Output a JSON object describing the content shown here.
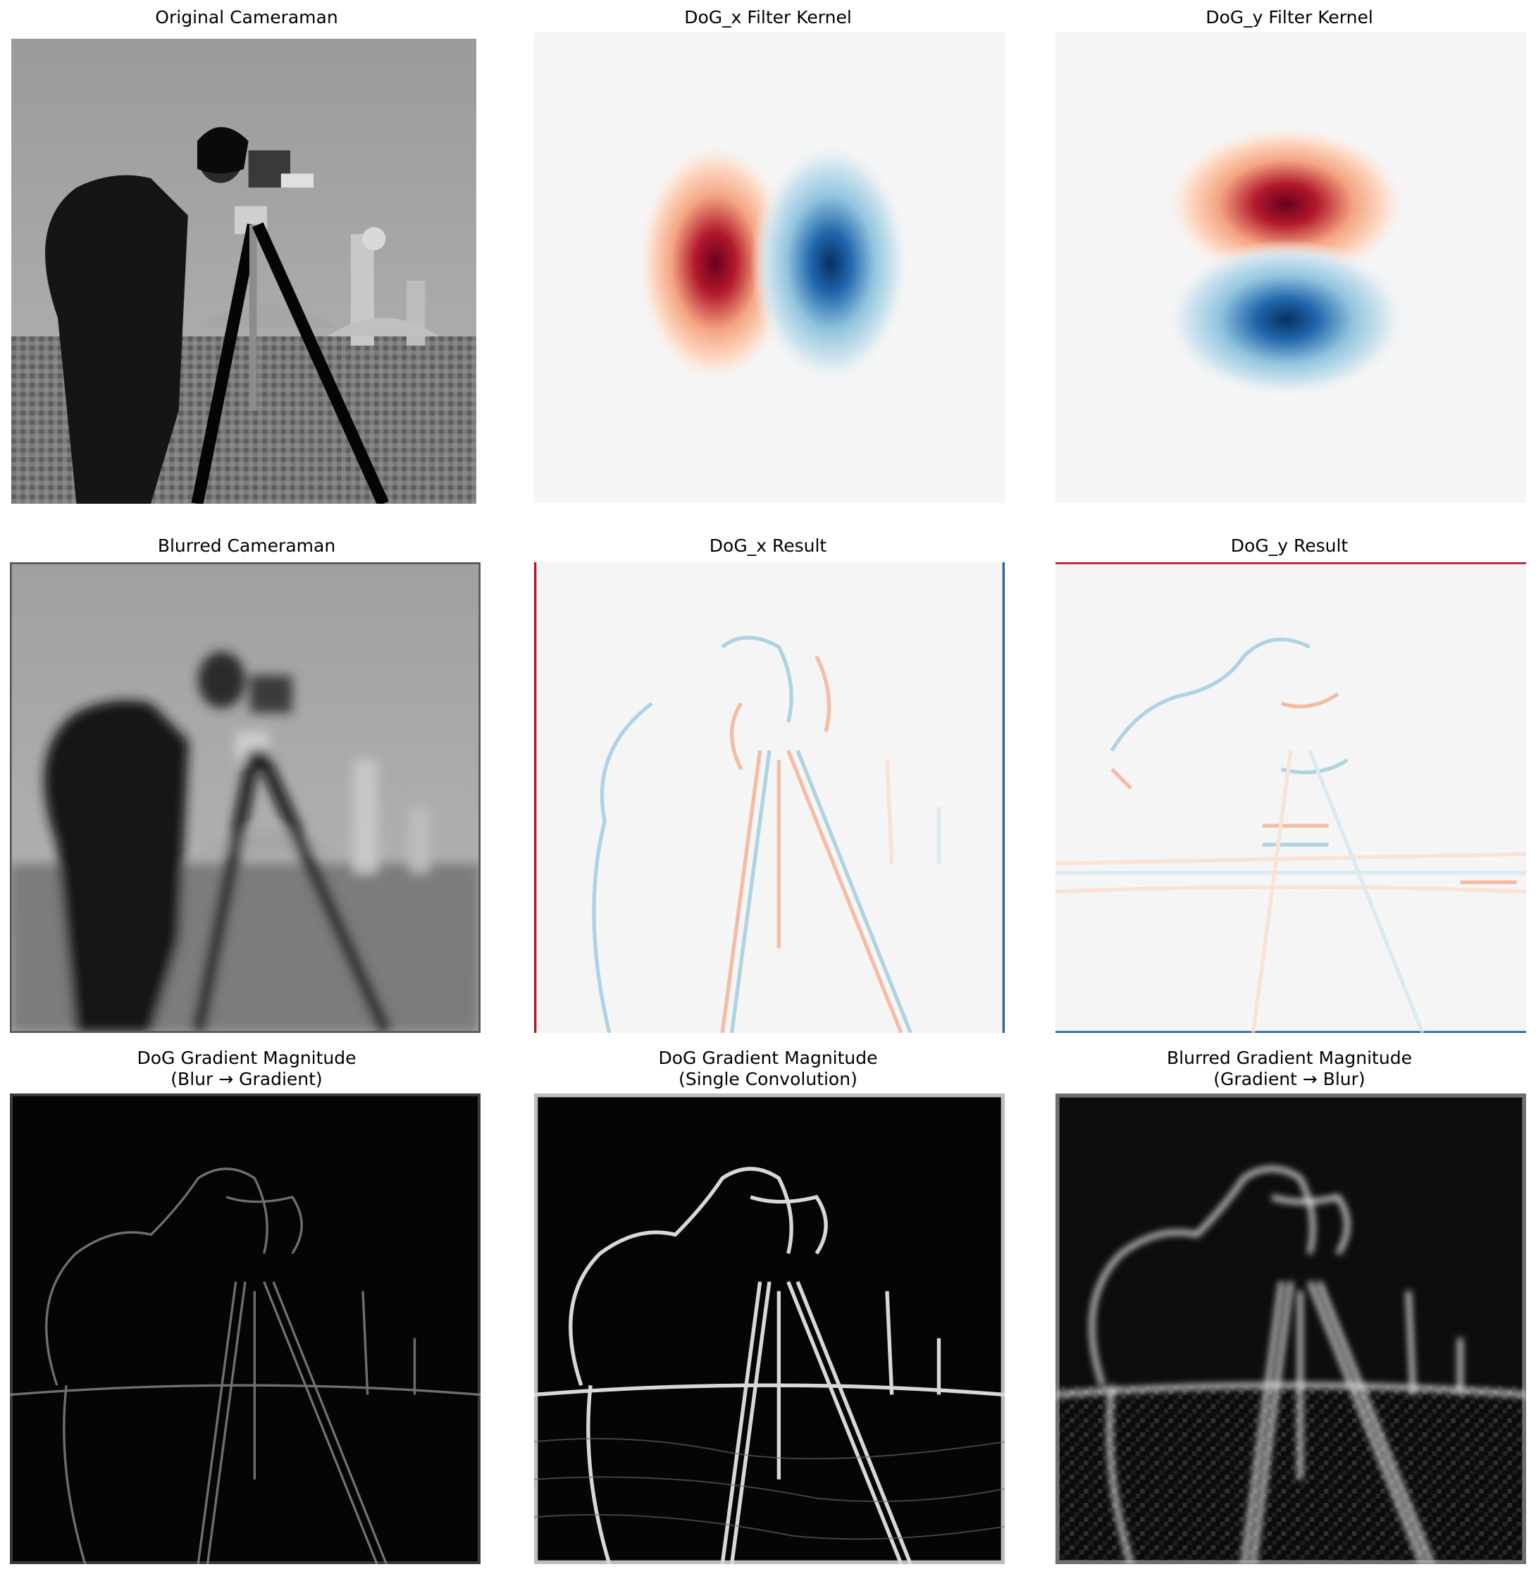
{
  "figure": {
    "panels": [
      {
        "id": "original-cameraman",
        "title_lines": [
          "Original Cameraman"
        ],
        "content": "grayscale photo of a man with a camera on a tripod",
        "colormap": "gray"
      },
      {
        "id": "dog-x-kernel",
        "title_lines": [
          "DoG_x Filter Kernel"
        ],
        "content": "red lobe left, blue lobe right",
        "colormap": "RdBu"
      },
      {
        "id": "dog-y-kernel",
        "title_lines": [
          "DoG_y Filter Kernel"
        ],
        "content": "red lobe top, blue lobe bottom",
        "colormap": "RdBu"
      },
      {
        "id": "blurred-cameraman",
        "title_lines": [
          "Blurred Cameraman"
        ],
        "content": "gaussian-blurred cameraman photo",
        "colormap": "gray"
      },
      {
        "id": "dog-x-result",
        "title_lines": [
          "DoG_x Result"
        ],
        "content": "horizontal-derivative edges on near-white background",
        "colormap": "RdBu"
      },
      {
        "id": "dog-y-result",
        "title_lines": [
          "DoG_y Result"
        ],
        "content": "vertical-derivative edges on near-white background",
        "colormap": "RdBu"
      },
      {
        "id": "dog-gradient-blur-then-gradient",
        "title_lines": [
          "DoG Gradient Magnitude",
          "(Blur → Gradient)"
        ],
        "content": "faint white edge outlines on black",
        "colormap": "gray"
      },
      {
        "id": "dog-gradient-single-convolution",
        "title_lines": [
          "DoG Gradient Magnitude",
          "(Single Convolution)"
        ],
        "content": "bright white edge outlines on black",
        "colormap": "gray"
      },
      {
        "id": "blurred-gradient-gradient-then-blur",
        "title_lines": [
          "Blurred Gradient Magnitude",
          "(Gradient → Blur)"
        ],
        "content": "blurry white edge outlines on dark background",
        "colormap": "gray"
      }
    ],
    "colors": {
      "background": "#ffffff",
      "text": "#000000",
      "rdbu_red_dark": "#67001f",
      "rdbu_red": "#b2182b",
      "rdbu_red_light": "#f4a582",
      "rdbu_neutral": "#f7f7f7",
      "rdbu_blue_light": "#92c5de",
      "rdbu_blue": "#2166ac",
      "rdbu_blue_dark": "#053061"
    }
  }
}
